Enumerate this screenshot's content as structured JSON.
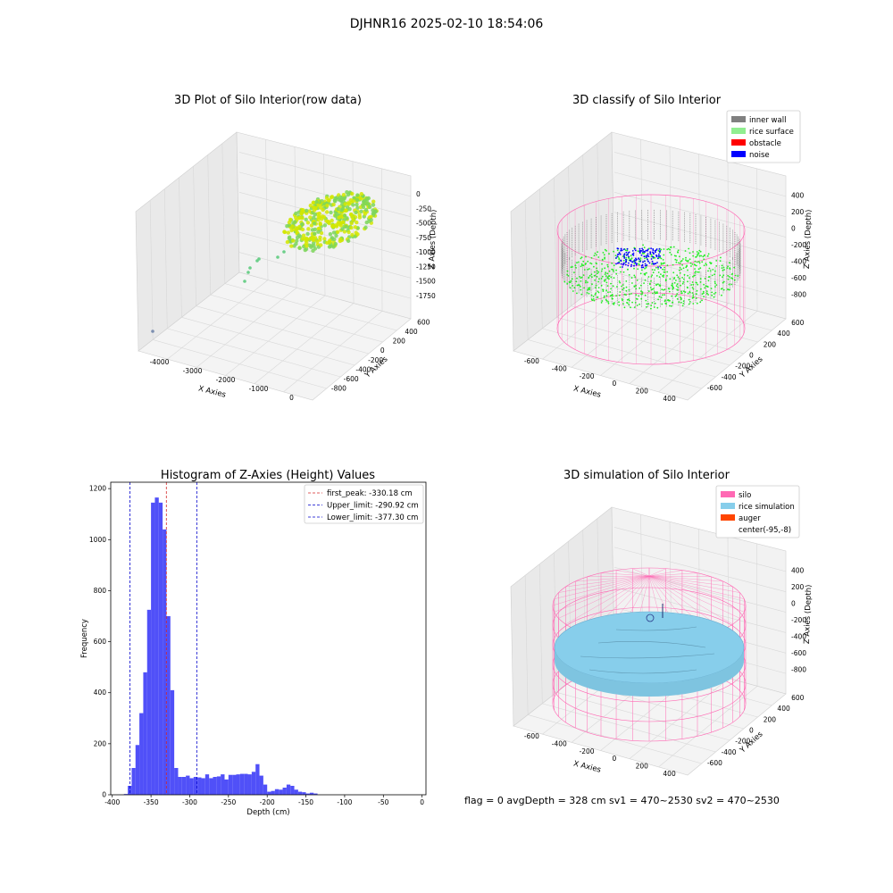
{
  "figure_title": "DJHNR16 2025-02-10 18:54:06",
  "status_line": "flag = 0     avgDepth = 328 cm  sv1 = 470~2530  sv2 = 470~2530",
  "colors": {
    "hist_bar": "#5050f8",
    "first_peak": "#d62728",
    "limits": "#0000cc",
    "inner_wall": "#808080",
    "rice_surface": "#90ee90",
    "obstacle": "#ff0000",
    "noise": "#0000ff",
    "silo": "#ff69b4",
    "rice_simulation": "#87ceeb",
    "auger": "#ff4500",
    "raw_cloud_a": "#d4e800",
    "raw_cloud_b": "#7cd65a"
  },
  "chart_data": [
    {
      "type": "scatter",
      "subtype": "3d",
      "title": "3D Plot of Silo Interior(row data)",
      "xlabel": "X Axies",
      "ylabel": "Y Axies",
      "zlabel": "Z Axies (Depth)",
      "x_ticks": [
        "-4000",
        "-3000",
        "-2000",
        "-1000",
        "0"
      ],
      "y_ticks": [
        "-800",
        "-600",
        "-400",
        "-200",
        "0",
        "200",
        "400",
        "600"
      ],
      "z_ticks": [
        "0",
        "-250",
        "-500",
        "-750",
        "-1000",
        "-1250",
        "-1500",
        "-1750"
      ],
      "grid": true
    },
    {
      "type": "scatter",
      "subtype": "3d",
      "title": "3D classify of Silo Interior",
      "xlabel": "X Axies",
      "ylabel": "Y Axies",
      "zlabel": "Z Axies (Depth)",
      "x_ticks": [
        "-600",
        "-400",
        "-200",
        "0",
        "200",
        "400"
      ],
      "y_ticks": [
        "-600",
        "-400",
        "-200",
        "0",
        "200",
        "400",
        "600"
      ],
      "z_ticks": [
        "400",
        "200",
        "0",
        "-200",
        "-400",
        "-600",
        "-800"
      ],
      "legend": [
        "inner wall",
        "rice surface",
        "obstacle",
        "noise"
      ],
      "legend_position": "top-right",
      "grid": true
    },
    {
      "type": "bar",
      "subtype": "histogram",
      "title": "Histogram of Z-Axies (Height) Values",
      "xlabel": "Depth (cm)",
      "ylabel": "Frequency",
      "xlim": [
        -402,
        5
      ],
      "ylim": [
        0,
        1225
      ],
      "x_ticks": [
        -400,
        -350,
        -300,
        -250,
        -200,
        -150,
        -100,
        -50,
        0
      ],
      "y_ticks": [
        0,
        200,
        400,
        600,
        800,
        1000,
        1200
      ],
      "bin_edges_start": -385,
      "bin_width": 5,
      "values": [
        3,
        35,
        105,
        195,
        320,
        480,
        725,
        1145,
        1165,
        1145,
        1040,
        700,
        410,
        105,
        70,
        70,
        75,
        65,
        70,
        68,
        65,
        80,
        65,
        70,
        72,
        80,
        60,
        78,
        78,
        80,
        82,
        82,
        80,
        90,
        120,
        75,
        40,
        12,
        15,
        22,
        20,
        28,
        40,
        35,
        20,
        12,
        10,
        5,
        8,
        5
      ],
      "vlines": [
        {
          "label": "first_peak: -330.18 cm",
          "x": -330.18,
          "style": "dashed",
          "color_key": "first_peak"
        },
        {
          "label": "Upper_limit: -290.92 cm",
          "x": -290.92,
          "style": "dashed",
          "color_key": "limits"
        },
        {
          "label": "Lower_limit: -377.30 cm",
          "x": -377.3,
          "style": "dashed",
          "color_key": "limits"
        }
      ],
      "legend_position": "top-right",
      "grid": false
    },
    {
      "type": "scatter",
      "subtype": "3d",
      "title": "3D simulation of Silo Interior",
      "xlabel": "X Axies",
      "ylabel": "Y Axies",
      "zlabel": "Z Axies (Depth)",
      "x_ticks": [
        "-600",
        "-400",
        "-200",
        "0",
        "200",
        "400"
      ],
      "y_ticks": [
        "-600",
        "-400",
        "-200",
        "0",
        "200",
        "400",
        "600"
      ],
      "z_ticks": [
        "400",
        "200",
        "0",
        "-200",
        "-400",
        "-600",
        "-800"
      ],
      "legend": [
        "silo",
        "rice simulation",
        "auger",
        "center(-95,-8)"
      ],
      "legend_position": "top-right",
      "grid": true
    }
  ]
}
